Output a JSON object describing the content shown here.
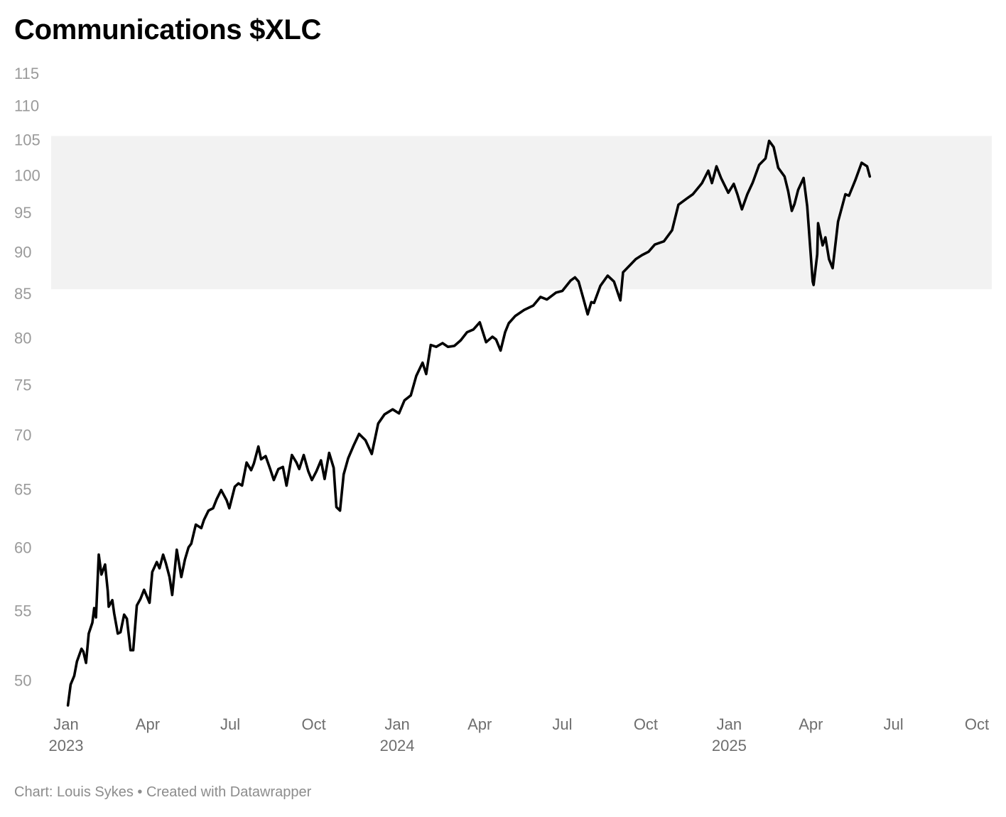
{
  "chart_data": {
    "type": "line",
    "title": "Communications $XLC",
    "y_scale": "log",
    "ylim": [
      48.2,
      115
    ],
    "y_ticks": [
      "115",
      "110",
      "105",
      "100",
      "95",
      "90",
      "85",
      "80",
      "75",
      "70",
      "65",
      "60",
      "55",
      "50"
    ],
    "x_range": [
      "2023-01-01",
      "2025-10-01"
    ],
    "x_ticks": [
      {
        "date": "2023-01-01",
        "label": "Jan",
        "year": "2023"
      },
      {
        "date": "2023-04-01",
        "label": "Apr",
        "year": ""
      },
      {
        "date": "2023-07-01",
        "label": "Jul",
        "year": ""
      },
      {
        "date": "2023-10-01",
        "label": "Oct",
        "year": ""
      },
      {
        "date": "2024-01-01",
        "label": "Jan",
        "year": "2024"
      },
      {
        "date": "2024-04-01",
        "label": "Apr",
        "year": ""
      },
      {
        "date": "2024-07-01",
        "label": "Jul",
        "year": ""
      },
      {
        "date": "2024-10-01",
        "label": "Oct",
        "year": ""
      },
      {
        "date": "2025-01-01",
        "label": "Jan",
        "year": "2025"
      },
      {
        "date": "2025-04-01",
        "label": "Apr",
        "year": ""
      },
      {
        "date": "2025-07-01",
        "label": "Jul",
        "year": ""
      },
      {
        "date": "2025-10-01",
        "label": "Oct",
        "year": ""
      }
    ],
    "shaded_band": {
      "y_from": 85.5,
      "y_to": 105.5,
      "color": "#f2f2f2"
    },
    "grid": false,
    "legend": "none",
    "line_color": "#000000",
    "series": [
      {
        "x": [
          "2023-01-03",
          "2023-01-06",
          "2023-01-10",
          "2023-01-13",
          "2023-01-18",
          "2023-01-20",
          "2023-01-23",
          "2023-01-26",
          "2023-01-30",
          "2023-02-01",
          "2023-02-03",
          "2023-02-06",
          "2023-02-09",
          "2023-02-13",
          "2023-02-16",
          "2023-02-17",
          "2023-02-21",
          "2023-02-23",
          "2023-02-27",
          "2023-03-02",
          "2023-03-06",
          "2023-03-09",
          "2023-03-13",
          "2023-03-16",
          "2023-03-20",
          "2023-03-24",
          "2023-03-28",
          "2023-04-03",
          "2023-04-06",
          "2023-04-11",
          "2023-04-14",
          "2023-04-18",
          "2023-04-21",
          "2023-04-25",
          "2023-04-28",
          "2023-05-03",
          "2023-05-08",
          "2023-05-12",
          "2023-05-16",
          "2023-05-19",
          "2023-05-24",
          "2023-05-30",
          "2023-06-02",
          "2023-06-07",
          "2023-06-12",
          "2023-06-16",
          "2023-06-21",
          "2023-06-27",
          "2023-06-30",
          "2023-07-06",
          "2023-07-10",
          "2023-07-14",
          "2023-07-19",
          "2023-07-24",
          "2023-07-27",
          "2023-08-01",
          "2023-08-04",
          "2023-08-09",
          "2023-08-14",
          "2023-08-18",
          "2023-08-23",
          "2023-08-28",
          "2023-09-01",
          "2023-09-07",
          "2023-09-12",
          "2023-09-15",
          "2023-09-20",
          "2023-09-25",
          "2023-09-29",
          "2023-10-04",
          "2023-10-09",
          "2023-10-13",
          "2023-10-18",
          "2023-10-23",
          "2023-10-26",
          "2023-10-30",
          "2023-11-03",
          "2023-11-08",
          "2023-11-14",
          "2023-11-20",
          "2023-11-27",
          "2023-12-04",
          "2023-12-11",
          "2023-12-18",
          "2023-12-27",
          "2024-01-03",
          "2024-01-09",
          "2024-01-16",
          "2024-01-22",
          "2024-01-29",
          "2024-02-02",
          "2024-02-07",
          "2024-02-13",
          "2024-02-20",
          "2024-02-26",
          "2024-03-04",
          "2024-03-11",
          "2024-03-18",
          "2024-03-25",
          "2024-04-01",
          "2024-04-08",
          "2024-04-15",
          "2024-04-19",
          "2024-04-24",
          "2024-04-29",
          "2024-05-03",
          "2024-05-10",
          "2024-05-20",
          "2024-05-30",
          "2024-06-07",
          "2024-06-14",
          "2024-06-24",
          "2024-07-01",
          "2024-07-10",
          "2024-07-15",
          "2024-07-19",
          "2024-07-24",
          "2024-07-29",
          "2024-08-02",
          "2024-08-05",
          "2024-08-12",
          "2024-08-20",
          "2024-08-27",
          "2024-09-03",
          "2024-09-06",
          "2024-09-13",
          "2024-09-20",
          "2024-09-27",
          "2024-10-04",
          "2024-10-11",
          "2024-10-21",
          "2024-10-30",
          "2024-11-06",
          "2024-11-15",
          "2024-11-22",
          "2024-12-02",
          "2024-12-09",
          "2024-12-13",
          "2024-12-18",
          "2024-12-23",
          "2024-12-31",
          "2025-01-06",
          "2025-01-10",
          "2025-01-15",
          "2025-01-21",
          "2025-01-27",
          "2025-02-03",
          "2025-02-10",
          "2025-02-14",
          "2025-02-19",
          "2025-02-24",
          "2025-03-03",
          "2025-03-07",
          "2025-03-11",
          "2025-03-14",
          "2025-03-18",
          "2025-03-24",
          "2025-03-28",
          "2025-04-03",
          "2025-04-04",
          "2025-04-08",
          "2025-04-09",
          "2025-04-14",
          "2025-04-17",
          "2025-04-21",
          "2025-04-25",
          "2025-05-01",
          "2025-05-06",
          "2025-05-09",
          "2025-05-13",
          "2025-05-20",
          "2025-05-27",
          "2025-06-02",
          "2025-06-05"
        ],
        "values": [
          48.3,
          49.7,
          50.3,
          51.3,
          52.2,
          52.0,
          51.2,
          53.3,
          54.1,
          55.2,
          54.5,
          59.4,
          57.8,
          58.6,
          56.5,
          55.3,
          55.8,
          54.8,
          53.3,
          53.4,
          54.7,
          54.4,
          52.1,
          52.1,
          55.4,
          55.9,
          56.6,
          55.6,
          58.0,
          58.8,
          58.3,
          59.4,
          58.7,
          57.6,
          56.2,
          59.8,
          57.6,
          59.0,
          60.0,
          60.3,
          61.9,
          61.6,
          62.3,
          63.1,
          63.3,
          64.1,
          64.9,
          64.0,
          63.3,
          65.2,
          65.5,
          65.3,
          67.4,
          66.7,
          67.3,
          68.9,
          67.7,
          68.0,
          66.8,
          65.8,
          66.8,
          67.0,
          65.3,
          68.1,
          67.4,
          66.8,
          68.1,
          66.6,
          65.8,
          66.6,
          67.6,
          65.9,
          68.3,
          66.9,
          63.4,
          63.1,
          66.3,
          67.8,
          69.0,
          70.1,
          69.5,
          68.2,
          71.1,
          72.0,
          72.5,
          72.1,
          73.4,
          73.9,
          75.9,
          77.3,
          76.1,
          79.2,
          79.0,
          79.4,
          79.0,
          79.1,
          79.7,
          80.6,
          80.9,
          81.7,
          79.5,
          80.1,
          79.8,
          78.6,
          80.6,
          81.6,
          82.4,
          83.1,
          83.6,
          84.6,
          84.3,
          85.1,
          85.3,
          86.5,
          86.9,
          86.4,
          84.5,
          82.6,
          84.0,
          83.9,
          85.9,
          87.1,
          86.4,
          84.2,
          87.5,
          88.3,
          89.1,
          89.6,
          90.0,
          90.9,
          91.3,
          92.7,
          96.0,
          96.8,
          97.4,
          98.9,
          100.6,
          98.9,
          101.2,
          99.6,
          97.6,
          98.8,
          97.4,
          95.4,
          97.4,
          99.0,
          101.4,
          102.3,
          104.8,
          103.9,
          101.0,
          99.8,
          97.8,
          95.2,
          96.1,
          98.0,
          99.6,
          95.8,
          86.4,
          86.0,
          89.7,
          93.6,
          90.8,
          91.8,
          89.1,
          88.0,
          93.8,
          96.0,
          97.4,
          97.2,
          99.3,
          101.7,
          101.2,
          99.8
        ]
      }
    ]
  },
  "footer": {
    "credit": "Chart: Louis Sykes • Created with Datawrapper"
  }
}
